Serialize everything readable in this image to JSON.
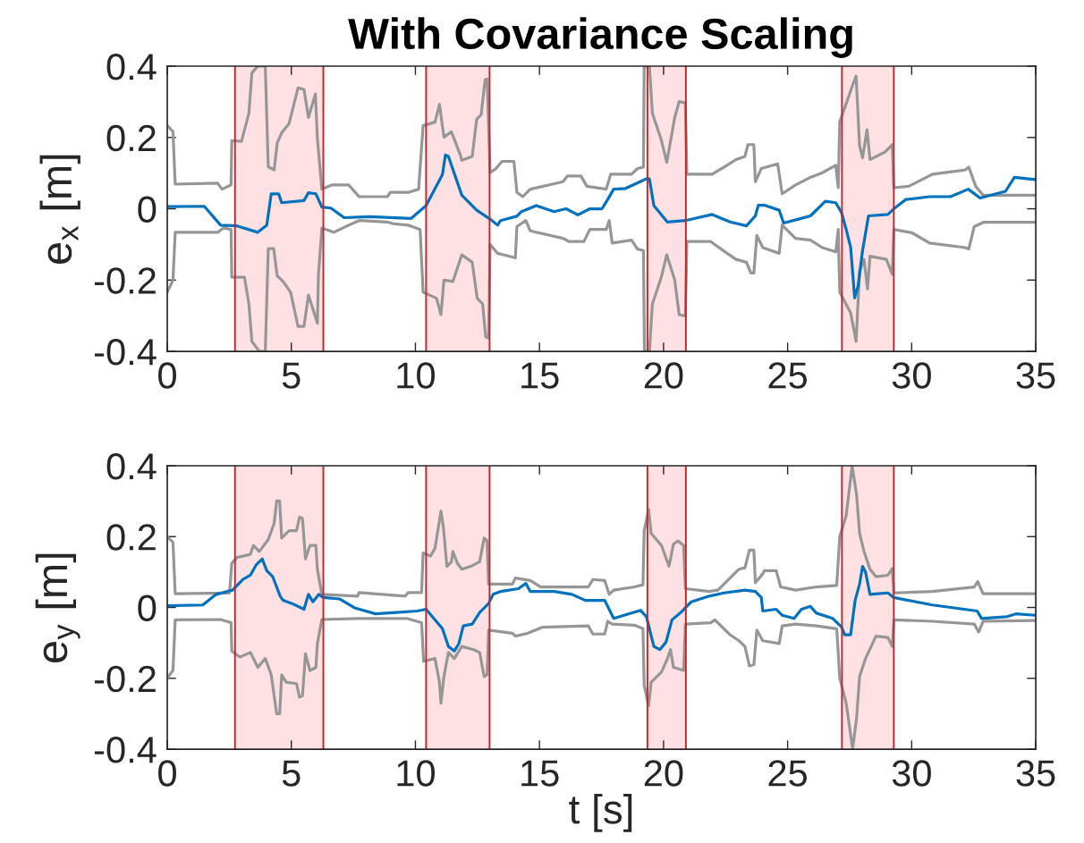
{
  "chart_data": [
    {
      "type": "line",
      "title": "With Covariance Scaling",
      "ylabel": "e$_{x}$ [m]",
      "xlim": [
        0,
        35
      ],
      "xticks": [
        0,
        5,
        10,
        15,
        20,
        25,
        30,
        35
      ],
      "ylim": [
        -0.4,
        0.4
      ],
      "yticks": [
        -0.4,
        -0.2,
        0,
        0.2,
        0.4
      ],
      "bands": [
        {
          "axis": "x",
          "from": 2.73,
          "to": 6.29,
          "color": "#ffe1e4"
        },
        {
          "axis": "x",
          "from": 10.43,
          "to": 12.99,
          "color": "#ffe1e4"
        },
        {
          "axis": "x",
          "from": 19.35,
          "to": 20.9,
          "color": "#ffe1e4"
        },
        {
          "axis": "x",
          "from": 27.19,
          "to": 29.28,
          "color": "#ffe1e4"
        }
      ],
      "ref_lines": [
        {
          "axis": "x",
          "value": 2.73,
          "color": "#c0282d"
        },
        {
          "axis": "x",
          "value": 6.29,
          "color": "#c0282d"
        },
        {
          "axis": "x",
          "value": 10.43,
          "color": "#c0282d"
        },
        {
          "axis": "x",
          "value": 12.99,
          "color": "#c0282d"
        },
        {
          "axis": "x",
          "value": 19.35,
          "color": "#c0282d"
        },
        {
          "axis": "x",
          "value": 20.9,
          "color": "#c0282d"
        },
        {
          "axis": "x",
          "value": 27.19,
          "color": "#c0282d"
        },
        {
          "axis": "x",
          "value": 29.28,
          "color": "#c0282d"
        }
      ],
      "series": [
        {
          "color": "#969696",
          "x": [
            0,
            0.23,
            0.32,
            2.03,
            2.21,
            2.57,
            2.6,
            2.99,
            3.29,
            3.41,
            3.65,
            3.95,
            4.07,
            4.31,
            4.43,
            4.61,
            4.91,
            5.27,
            5.51,
            5.69,
            5.97,
            6.05,
            6.23,
            6.65,
            7.31,
            7.73,
            8.87,
            8.99,
            9.71,
            10.13,
            10.31,
            10.79,
            10.97,
            11.15,
            11.45,
            11.81,
            11.87,
            12.29,
            12.47,
            12.65,
            12.81,
            12.89,
            13.01,
            13.25,
            13.49,
            13.97,
            14.09,
            14.33,
            14.63,
            15.95,
            16.13,
            16.67,
            16.91,
            17.69,
            17.87,
            18.71,
            18.95,
            19.19,
            19.22,
            19.43,
            19.55,
            19.91,
            20.13,
            20.45,
            20.63,
            20.88,
            20.94,
            21.96,
            22.56,
            22.92,
            23.28,
            23.4,
            23.64,
            23.7,
            23.94,
            24.6,
            24.78,
            25.32,
            25.92,
            26.4,
            26.94,
            27.04,
            27.1,
            27.6,
            27.76,
            27.9,
            28.02,
            28.2,
            28.32,
            28.92,
            29.22,
            29.28,
            29.88,
            30.84,
            32.16,
            32.3,
            32.58,
            32.88,
            34.98
          ],
          "values": [
            0.234,
            0.216,
            0.069,
            0.072,
            0.055,
            0.067,
            0.191,
            0.189,
            0.268,
            0.381,
            0.4,
            0.4,
            0.118,
            0.109,
            0.184,
            0.213,
            0.239,
            0.339,
            0.335,
            0.256,
            0.322,
            0.197,
            0.055,
            0.067,
            0.067,
            0.034,
            0.034,
            0.046,
            0.046,
            0.055,
            0.233,
            0.243,
            0.293,
            0.201,
            0.216,
            0.151,
            0.136,
            0.147,
            0.251,
            0.264,
            0.362,
            0.364,
            0.101,
            0.113,
            0.133,
            0.133,
            0.046,
            0.034,
            0.055,
            0.076,
            0.092,
            0.092,
            0.063,
            0.055,
            0.097,
            0.097,
            0.113,
            0.117,
            0.4,
            0.4,
            0.268,
            0.193,
            0.13,
            0.256,
            0.301,
            0.297,
            0.097,
            0.097,
            0.122,
            0.138,
            0.147,
            0.18,
            0.18,
            0.076,
            0.113,
            0.126,
            0.042,
            0.067,
            0.088,
            0.101,
            0.122,
            0.059,
            0.243,
            0.343,
            0.372,
            0.176,
            0.143,
            0.222,
            0.138,
            0.159,
            0.18,
            0.059,
            0.063,
            0.097,
            0.109,
            0.117,
            0.063,
            0.038,
            0.038
          ]
        },
        {
          "color": "#969696",
          "x": [
            0,
            0.23,
            0.32,
            2.03,
            2.27,
            2.57,
            2.6,
            3.11,
            3.29,
            3.41,
            3.71,
            3.95,
            4.07,
            4.29,
            4.43,
            4.67,
            4.97,
            5.27,
            5.51,
            5.69,
            6.05,
            6.09,
            6.23,
            6.71,
            7.31,
            7.73,
            8.87,
            9.11,
            9.71,
            10.19,
            10.31,
            10.85,
            11.03,
            11.15,
            11.51,
            11.87,
            12.29,
            12.49,
            12.71,
            12.83,
            12.95,
            13.01,
            13.31,
            13.55,
            14.03,
            14.09,
            14.45,
            14.63,
            15.95,
            16.19,
            16.79,
            17.03,
            17.69,
            17.81,
            17.93,
            18.71,
            18.95,
            19.19,
            19.23,
            19.43,
            19.55,
            19.91,
            20.13,
            20.45,
            20.63,
            20.88,
            20.94,
            21.9,
            22.56,
            22.92,
            23.34,
            23.52,
            23.64,
            23.76,
            24.0,
            24.66,
            24.78,
            25.32,
            25.92,
            26.4,
            26.94,
            27.04,
            27.1,
            27.54,
            27.76,
            27.9,
            28.08,
            28.22,
            28.32,
            28.98,
            29.22,
            29.28,
            30.0,
            30.72,
            32.16,
            32.3,
            32.52,
            32.88,
            34.98
          ],
          "values": [
            -0.234,
            -0.2,
            -0.066,
            -0.066,
            -0.054,
            -0.058,
            -0.192,
            -0.192,
            -0.267,
            -0.372,
            -0.4,
            -0.4,
            -0.112,
            -0.112,
            -0.188,
            -0.204,
            -0.234,
            -0.33,
            -0.33,
            -0.242,
            -0.321,
            -0.188,
            -0.054,
            -0.066,
            -0.046,
            -0.033,
            -0.037,
            -0.042,
            -0.046,
            -0.058,
            -0.234,
            -0.251,
            -0.297,
            -0.2,
            -0.204,
            -0.129,
            -0.15,
            -0.251,
            -0.267,
            -0.359,
            -0.363,
            -0.1,
            -0.125,
            -0.129,
            -0.138,
            -0.05,
            -0.033,
            -0.062,
            -0.083,
            -0.092,
            -0.092,
            -0.058,
            -0.058,
            -0.033,
            -0.096,
            -0.088,
            -0.113,
            -0.117,
            -0.4,
            -0.4,
            -0.267,
            -0.192,
            -0.129,
            -0.2,
            -0.297,
            -0.301,
            -0.092,
            -0.092,
            -0.125,
            -0.142,
            -0.15,
            -0.18,
            -0.18,
            -0.075,
            -0.109,
            -0.125,
            -0.046,
            -0.083,
            -0.088,
            -0.109,
            -0.121,
            -0.058,
            -0.234,
            -0.292,
            -0.372,
            -0.175,
            -0.142,
            -0.225,
            -0.133,
            -0.142,
            -0.184,
            -0.058,
            -0.067,
            -0.096,
            -0.109,
            -0.113,
            -0.05,
            -0.038,
            -0.038
          ]
        },
        {
          "color": "#0072bd",
          "x": [
            0,
            1.49,
            2.15,
            2.81,
            3.65,
            4.01,
            4.19,
            4.49,
            4.61,
            5.51,
            5.69,
            5.99,
            6.23,
            6.59,
            7.13,
            8.15,
            9.83,
            10.43,
            11.09,
            11.21,
            11.33,
            11.87,
            12.47,
            13.01,
            13.31,
            13.43,
            14.09,
            14.27,
            14.87,
            15.59,
            16.07,
            16.55,
            17.03,
            17.52,
            17.75,
            17.99,
            18.47,
            19.31,
            19.43,
            19.61,
            20.15,
            20.88,
            21.96,
            22.68,
            23.34,
            23.7,
            23.82,
            24.06,
            24.66,
            24.84,
            25.44,
            25.92,
            26.52,
            26.94,
            27.18,
            27.36,
            27.54,
            27.7,
            27.84,
            28.02,
            28.26,
            29.04,
            29.28,
            29.76,
            30.72,
            31.56,
            32.28,
            32.76,
            33.78,
            34.14,
            34.98
          ],
          "values": [
            0.006,
            0.007,
            -0.046,
            -0.048,
            -0.066,
            -0.046,
            0.042,
            0.042,
            0.017,
            0.023,
            0.045,
            0.042,
            0.005,
            0.002,
            -0.025,
            -0.022,
            -0.027,
            0.009,
            0.096,
            0.151,
            0.147,
            0.038,
            -0.004,
            -0.029,
            -0.046,
            -0.033,
            -0.021,
            -0.008,
            0.009,
            -0.008,
            0,
            -0.017,
            0,
            0,
            0.026,
            0.055,
            0.057,
            0.084,
            0.084,
            0.009,
            -0.037,
            -0.033,
            -0.016,
            -0.037,
            -0.048,
            -0.02,
            0.01,
            0.01,
            -0.004,
            -0.04,
            -0.029,
            -0.02,
            0.021,
            0.017,
            -0.012,
            -0.058,
            -0.108,
            -0.25,
            -0.217,
            -0.117,
            -0.02,
            -0.016,
            0,
            0.026,
            0.034,
            0.034,
            0.055,
            0.03,
            0.049,
            0.088,
            0.082
          ]
        }
      ]
    },
    {
      "type": "line",
      "xlabel": "t [s]",
      "ylabel": "e$_{y}$ [m]",
      "xlim": [
        0,
        35
      ],
      "xticks": [
        0,
        5,
        10,
        15,
        20,
        25,
        30,
        35
      ],
      "ylim": [
        -0.4,
        0.4
      ],
      "yticks": [
        -0.4,
        -0.2,
        0,
        0.2,
        0.4
      ],
      "bands": [
        {
          "axis": "x",
          "from": 2.73,
          "to": 6.29,
          "color": "#ffe1e4"
        },
        {
          "axis": "x",
          "from": 10.43,
          "to": 12.99,
          "color": "#ffe1e4"
        },
        {
          "axis": "x",
          "from": 19.35,
          "to": 20.9,
          "color": "#ffe1e4"
        },
        {
          "axis": "x",
          "from": 27.19,
          "to": 29.28,
          "color": "#ffe1e4"
        }
      ],
      "ref_lines": [
        {
          "axis": "x",
          "value": 2.73,
          "color": "#c0282d"
        },
        {
          "axis": "x",
          "value": 6.29,
          "color": "#c0282d"
        },
        {
          "axis": "x",
          "value": 10.43,
          "color": "#c0282d"
        },
        {
          "axis": "x",
          "value": 12.99,
          "color": "#c0282d"
        },
        {
          "axis": "x",
          "value": 19.35,
          "color": "#c0282d"
        },
        {
          "axis": "x",
          "value": 20.9,
          "color": "#c0282d"
        },
        {
          "axis": "x",
          "value": 27.19,
          "color": "#c0282d"
        },
        {
          "axis": "x",
          "value": 29.28,
          "color": "#c0282d"
        }
      ],
      "series": [
        {
          "color": "#969696",
          "x": [
            0,
            0.23,
            0.32,
            2.51,
            2.6,
            2.81,
            3.35,
            3.47,
            3.71,
            4.07,
            4.31,
            4.41,
            4.53,
            4.61,
            4.91,
            5.21,
            5.33,
            5.45,
            5.57,
            5.75,
            5.99,
            6.05,
            6.23,
            7.67,
            7.73,
            9.59,
            9.71,
            10.25,
            10.31,
            10.61,
            10.79,
            11.03,
            11.13,
            11.27,
            11.45,
            11.51,
            11.69,
            11.87,
            12.23,
            12.59,
            12.77,
            12.89,
            12.95,
            13.91,
            14.03,
            14.63,
            15.05,
            16.97,
            17.15,
            17.63,
            17.81,
            17.99,
            18.83,
            19.17,
            19.22,
            19.4,
            19.5,
            19.92,
            20.22,
            20.4,
            20.58,
            20.81,
            20.88,
            21.84,
            22.19,
            22.68,
            23.04,
            23.28,
            23.46,
            23.64,
            23.7,
            24.0,
            24.06,
            24.54,
            24.72,
            25.32,
            26.16,
            26.98,
            27.1,
            27.36,
            27.6,
            27.78,
            27.9,
            28.08,
            28.32,
            28.56,
            29.04,
            29.22,
            29.28,
            30.84,
            32.52,
            32.66,
            32.88,
            34.98
          ],
          "values": [
            0.2,
            0.184,
            0.039,
            0.041,
            0.125,
            0.141,
            0.15,
            0.175,
            0.158,
            0.192,
            0.238,
            0.301,
            0.301,
            0.196,
            0.217,
            0.217,
            0.255,
            0.251,
            0.137,
            0.175,
            0.175,
            0.108,
            0.037,
            0.032,
            0.042,
            0.032,
            0.042,
            0.042,
            0.154,
            0.145,
            0.167,
            0.272,
            0.225,
            0.116,
            0.129,
            0.158,
            0.125,
            0.108,
            0.116,
            0.129,
            0.196,
            0.188,
            0.066,
            0.066,
            0.083,
            0.076,
            0.058,
            0.058,
            0.079,
            0.076,
            0.037,
            0.049,
            0.058,
            0.064,
            0.217,
            0.276,
            0.209,
            0.175,
            0.116,
            0.179,
            0.188,
            0.175,
            0.053,
            0.045,
            0.049,
            0.083,
            0.108,
            0.112,
            0.162,
            0.162,
            0.07,
            0.095,
            0.104,
            0.104,
            0.058,
            0.049,
            0.058,
            0.062,
            0.2,
            0.259,
            0.4,
            0.318,
            0.209,
            0.158,
            0.108,
            0.087,
            0.091,
            0.11,
            0.041,
            0.045,
            0.058,
            0.073,
            0.039,
            0.039
          ]
        },
        {
          "color": "#969696",
          "x": [
            0,
            0.23,
            0.32,
            2.15,
            2.57,
            2.6,
            2.93,
            3.35,
            3.65,
            3.95,
            4.19,
            4.41,
            4.53,
            4.61,
            4.79,
            5.21,
            5.33,
            5.45,
            5.57,
            5.75,
            5.99,
            6.05,
            6.23,
            7.67,
            9.65,
            10.25,
            10.33,
            10.79,
            10.97,
            11.03,
            11.15,
            11.33,
            11.57,
            11.87,
            12.35,
            12.59,
            12.77,
            12.89,
            12.95,
            13.91,
            14.03,
            14.51,
            15.11,
            16.97,
            17.15,
            17.63,
            17.75,
            17.93,
            18.83,
            19.17,
            19.22,
            19.4,
            19.5,
            19.92,
            20.16,
            20.28,
            20.4,
            20.81,
            20.88,
            21.9,
            22.07,
            22.68,
            23.04,
            23.28,
            23.46,
            23.64,
            23.76,
            24.0,
            24.66,
            24.78,
            25.32,
            26.16,
            26.98,
            27.1,
            27.36,
            27.62,
            27.78,
            27.9,
            28.14,
            28.56,
            29.04,
            29.22,
            29.28,
            30.84,
            32.52,
            32.7,
            32.88,
            34.98
          ],
          "values": [
            -0.199,
            -0.178,
            -0.035,
            -0.034,
            -0.043,
            -0.123,
            -0.14,
            -0.127,
            -0.169,
            -0.144,
            -0.19,
            -0.3,
            -0.3,
            -0.19,
            -0.211,
            -0.215,
            -0.253,
            -0.249,
            -0.131,
            -0.178,
            -0.169,
            -0.102,
            -0.034,
            -0.031,
            -0.031,
            -0.043,
            -0.152,
            -0.144,
            -0.211,
            -0.27,
            -0.195,
            -0.127,
            -0.144,
            -0.11,
            -0.119,
            -0.127,
            -0.195,
            -0.19,
            -0.064,
            -0.073,
            -0.081,
            -0.073,
            -0.056,
            -0.052,
            -0.075,
            -0.075,
            -0.039,
            -0.047,
            -0.05,
            -0.06,
            -0.22,
            -0.278,
            -0.211,
            -0.182,
            -0.144,
            -0.119,
            -0.169,
            -0.178,
            -0.047,
            -0.043,
            -0.035,
            -0.077,
            -0.094,
            -0.11,
            -0.165,
            -0.161,
            -0.064,
            -0.094,
            -0.102,
            -0.052,
            -0.047,
            -0.052,
            -0.06,
            -0.199,
            -0.27,
            -0.4,
            -0.312,
            -0.195,
            -0.144,
            -0.081,
            -0.085,
            -0.11,
            -0.035,
            -0.039,
            -0.047,
            -0.069,
            -0.039,
            -0.037
          ]
        },
        {
          "color": "#0072bd",
          "x": [
            0,
            1.43,
            1.97,
            2.63,
            3.05,
            3.35,
            3.59,
            3.83,
            4.01,
            4.25,
            4.55,
            4.67,
            5.03,
            5.51,
            5.69,
            5.87,
            6.11,
            6.29,
            6.95,
            7.55,
            8.39,
            9.23,
            10.07,
            10.43,
            11.09,
            11.33,
            11.57,
            11.75,
            11.93,
            12.29,
            12.59,
            12.95,
            13.13,
            13.43,
            14.15,
            14.45,
            14.63,
            15.59,
            16.31,
            16.85,
            17.63,
            17.99,
            19.07,
            19.31,
            19.61,
            19.85,
            20.1,
            20.34,
            20.7,
            21.12,
            21.84,
            22.44,
            23.28,
            23.7,
            23.94,
            24.0,
            24.54,
            24.78,
            25.26,
            25.56,
            25.92,
            26.16,
            26.82,
            27.18,
            27.3,
            27.54,
            27.72,
            27.9,
            28.02,
            28.14,
            28.32,
            29.04,
            29.28,
            30.84,
            32.64,
            32.82,
            33.84,
            34.2,
            34.98
          ],
          "values": [
            0.005,
            0.007,
            0.037,
            0.049,
            0.079,
            0.091,
            0.121,
            0.137,
            0.104,
            0.087,
            0.032,
            0.02,
            0.011,
            -0.005,
            0.037,
            0.016,
            0.037,
            0.028,
            0.024,
            -0.001,
            -0.018,
            -0.014,
            -0.01,
            -0.005,
            -0.06,
            -0.11,
            -0.123,
            -0.102,
            -0.052,
            -0.047,
            -0.014,
            0.011,
            0.037,
            0.045,
            0.053,
            0.068,
            0.045,
            0.045,
            0.037,
            0.02,
            0.02,
            -0.031,
            -0.008,
            -0.026,
            -0.11,
            -0.119,
            -0.098,
            -0.035,
            -0.014,
            0.016,
            0.032,
            0.041,
            0.049,
            0.045,
            0.028,
            -0.01,
            -0.005,
            -0.022,
            -0.031,
            -0.005,
            0.003,
            -0.016,
            -0.031,
            -0.056,
            -0.077,
            -0.077,
            0.02,
            0.066,
            0.116,
            0.1,
            0.037,
            0.041,
            0.028,
            0.007,
            -0.01,
            -0.031,
            -0.026,
            -0.018,
            -0.022
          ]
        }
      ]
    }
  ]
}
